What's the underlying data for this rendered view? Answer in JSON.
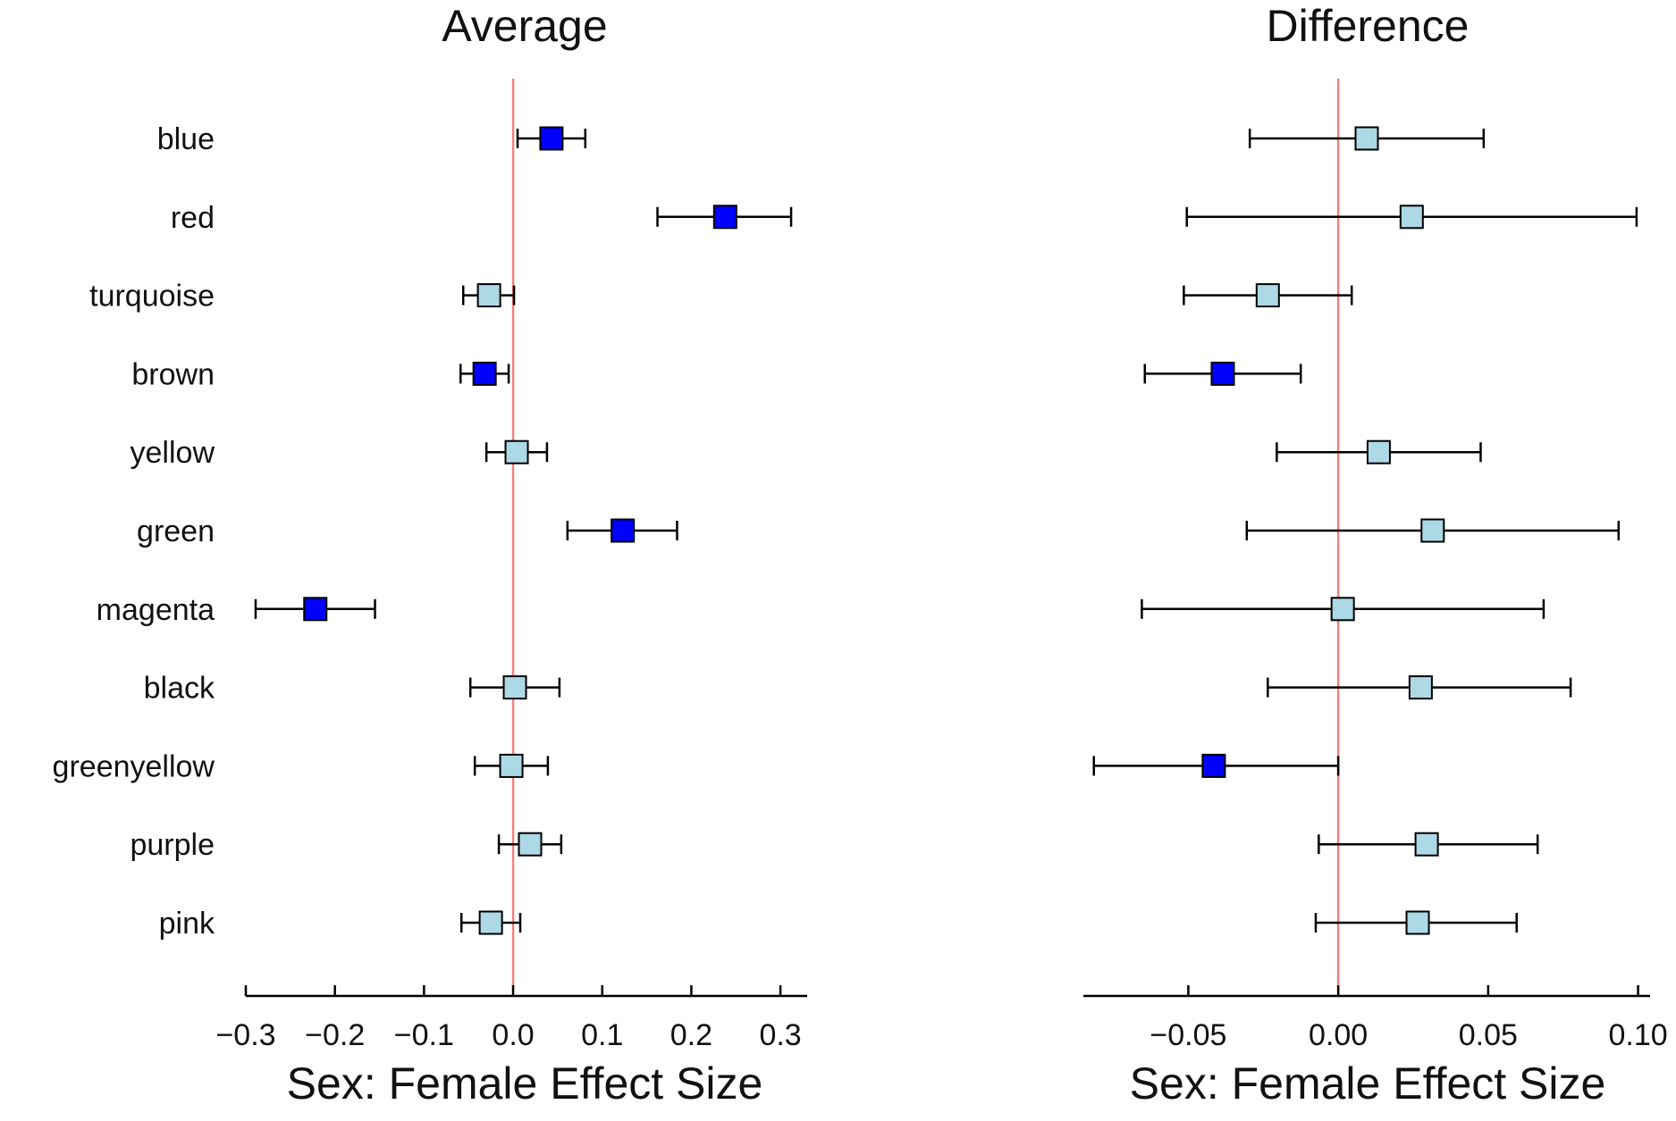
{
  "chart_data": {
    "type": "forest",
    "categories": [
      "blue",
      "red",
      "turquoise",
      "brown",
      "yellow",
      "green",
      "magenta",
      "black",
      "greenyellow",
      "purple",
      "pink"
    ],
    "colors": {
      "significant": "#0000ff",
      "nonsignificant": "#add8e6",
      "reference_line": "#f08080",
      "ink": "#000000"
    },
    "panels": [
      {
        "title": "Average",
        "xlabel": "Sex: Female Effect Size",
        "xlim": [
          -0.3,
          0.33
        ],
        "ticks": [
          -0.3,
          -0.2,
          -0.1,
          0.0,
          0.1,
          0.2,
          0.3
        ],
        "tick_labels": [
          "−0.3",
          "−0.2",
          "−0.1",
          "0.0",
          "0.1",
          "0.2",
          "0.3"
        ],
        "reference": 0.0,
        "points": [
          {
            "category": "blue",
            "estimate": 0.043,
            "lower": 0.005,
            "upper": 0.081,
            "significant": true
          },
          {
            "category": "red",
            "estimate": 0.238,
            "lower": 0.162,
            "upper": 0.312,
            "significant": true
          },
          {
            "category": "turquoise",
            "estimate": -0.027,
            "lower": -0.056,
            "upper": 0.001,
            "significant": false
          },
          {
            "category": "brown",
            "estimate": -0.032,
            "lower": -0.059,
            "upper": -0.005,
            "significant": true
          },
          {
            "category": "yellow",
            "estimate": 0.004,
            "lower": -0.03,
            "upper": 0.038,
            "significant": false
          },
          {
            "category": "green",
            "estimate": 0.123,
            "lower": 0.061,
            "upper": 0.184,
            "significant": true
          },
          {
            "category": "magenta",
            "estimate": -0.222,
            "lower": -0.289,
            "upper": -0.155,
            "significant": true
          },
          {
            "category": "black",
            "estimate": 0.002,
            "lower": -0.048,
            "upper": 0.052,
            "significant": false
          },
          {
            "category": "greenyellow",
            "estimate": -0.002,
            "lower": -0.043,
            "upper": 0.039,
            "significant": false
          },
          {
            "category": "purple",
            "estimate": 0.019,
            "lower": -0.016,
            "upper": 0.054,
            "significant": false
          },
          {
            "category": "pink",
            "estimate": -0.025,
            "lower": -0.058,
            "upper": 0.008,
            "significant": false
          }
        ]
      },
      {
        "title": "Difference",
        "xlabel": "Sex: Female Effect Size",
        "xlim": [
          -0.085,
          0.104
        ],
        "ticks": [
          -0.05,
          0.0,
          0.05,
          0.1
        ],
        "tick_labels": [
          "−0.05",
          "0.00",
          "0.05",
          "0.10"
        ],
        "reference": 0.0,
        "points": [
          {
            "category": "blue",
            "estimate": 0.0095,
            "lower": -0.0295,
            "upper": 0.0485,
            "significant": false
          },
          {
            "category": "red",
            "estimate": 0.0245,
            "lower": -0.0505,
            "upper": 0.0995,
            "significant": false
          },
          {
            "category": "turquoise",
            "estimate": -0.0235,
            "lower": -0.0515,
            "upper": 0.0045,
            "significant": false
          },
          {
            "category": "brown",
            "estimate": -0.0385,
            "lower": -0.0645,
            "upper": -0.0125,
            "significant": true
          },
          {
            "category": "yellow",
            "estimate": 0.0135,
            "lower": -0.0205,
            "upper": 0.0475,
            "significant": false
          },
          {
            "category": "green",
            "estimate": 0.0315,
            "lower": -0.0305,
            "upper": 0.0935,
            "significant": false
          },
          {
            "category": "magenta",
            "estimate": 0.0015,
            "lower": -0.0655,
            "upper": 0.0685,
            "significant": false
          },
          {
            "category": "black",
            "estimate": 0.0275,
            "lower": -0.0235,
            "upper": 0.0775,
            "significant": false
          },
          {
            "category": "greenyellow",
            "estimate": -0.0415,
            "lower": -0.0815,
            "upper": 0.0,
            "significant": true
          },
          {
            "category": "purple",
            "estimate": 0.0295,
            "lower": -0.0065,
            "upper": 0.0665,
            "significant": false
          },
          {
            "category": "pink",
            "estimate": 0.0265,
            "lower": -0.0075,
            "upper": 0.0595,
            "significant": false
          }
        ]
      }
    ]
  }
}
